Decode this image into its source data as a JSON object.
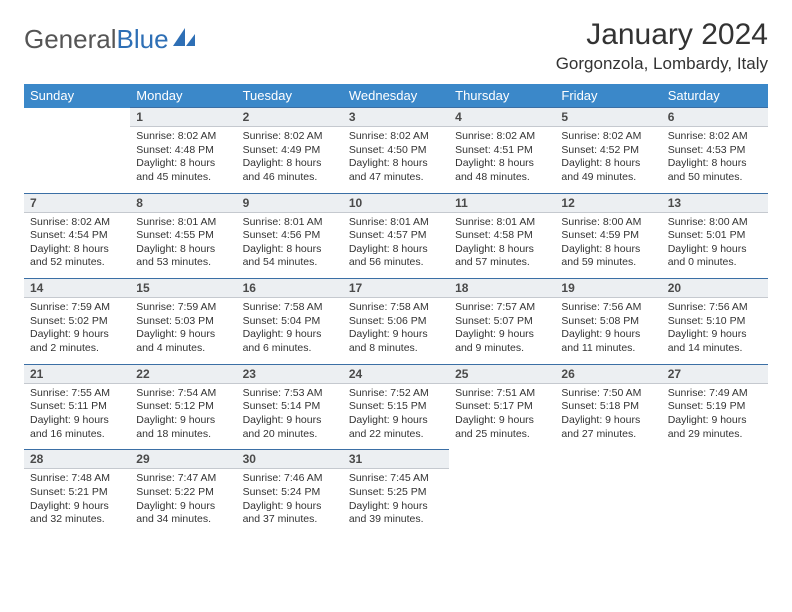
{
  "logo": {
    "part1": "General",
    "part2": "Blue"
  },
  "title": "January 2024",
  "location": "Gorgonzola, Lombardy, Italy",
  "header_bg": "#3b88c9",
  "daynum_bg": "#eceff2",
  "border_color": "#3b6fa5",
  "weekdays": [
    "Sunday",
    "Monday",
    "Tuesday",
    "Wednesday",
    "Thursday",
    "Friday",
    "Saturday"
  ],
  "weeks": [
    {
      "nums": [
        "",
        "1",
        "2",
        "3",
        "4",
        "5",
        "6"
      ],
      "cells": [
        "",
        "Sunrise: 8:02 AM\nSunset: 4:48 PM\nDaylight: 8 hours and 45 minutes.",
        "Sunrise: 8:02 AM\nSunset: 4:49 PM\nDaylight: 8 hours and 46 minutes.",
        "Sunrise: 8:02 AM\nSunset: 4:50 PM\nDaylight: 8 hours and 47 minutes.",
        "Sunrise: 8:02 AM\nSunset: 4:51 PM\nDaylight: 8 hours and 48 minutes.",
        "Sunrise: 8:02 AM\nSunset: 4:52 PM\nDaylight: 8 hours and 49 minutes.",
        "Sunrise: 8:02 AM\nSunset: 4:53 PM\nDaylight: 8 hours and 50 minutes."
      ]
    },
    {
      "nums": [
        "7",
        "8",
        "9",
        "10",
        "11",
        "12",
        "13"
      ],
      "cells": [
        "Sunrise: 8:02 AM\nSunset: 4:54 PM\nDaylight: 8 hours and 52 minutes.",
        "Sunrise: 8:01 AM\nSunset: 4:55 PM\nDaylight: 8 hours and 53 minutes.",
        "Sunrise: 8:01 AM\nSunset: 4:56 PM\nDaylight: 8 hours and 54 minutes.",
        "Sunrise: 8:01 AM\nSunset: 4:57 PM\nDaylight: 8 hours and 56 minutes.",
        "Sunrise: 8:01 AM\nSunset: 4:58 PM\nDaylight: 8 hours and 57 minutes.",
        "Sunrise: 8:00 AM\nSunset: 4:59 PM\nDaylight: 8 hours and 59 minutes.",
        "Sunrise: 8:00 AM\nSunset: 5:01 PM\nDaylight: 9 hours and 0 minutes."
      ]
    },
    {
      "nums": [
        "14",
        "15",
        "16",
        "17",
        "18",
        "19",
        "20"
      ],
      "cells": [
        "Sunrise: 7:59 AM\nSunset: 5:02 PM\nDaylight: 9 hours and 2 minutes.",
        "Sunrise: 7:59 AM\nSunset: 5:03 PM\nDaylight: 9 hours and 4 minutes.",
        "Sunrise: 7:58 AM\nSunset: 5:04 PM\nDaylight: 9 hours and 6 minutes.",
        "Sunrise: 7:58 AM\nSunset: 5:06 PM\nDaylight: 9 hours and 8 minutes.",
        "Sunrise: 7:57 AM\nSunset: 5:07 PM\nDaylight: 9 hours and 9 minutes.",
        "Sunrise: 7:56 AM\nSunset: 5:08 PM\nDaylight: 9 hours and 11 minutes.",
        "Sunrise: 7:56 AM\nSunset: 5:10 PM\nDaylight: 9 hours and 14 minutes."
      ]
    },
    {
      "nums": [
        "21",
        "22",
        "23",
        "24",
        "25",
        "26",
        "27"
      ],
      "cells": [
        "Sunrise: 7:55 AM\nSunset: 5:11 PM\nDaylight: 9 hours and 16 minutes.",
        "Sunrise: 7:54 AM\nSunset: 5:12 PM\nDaylight: 9 hours and 18 minutes.",
        "Sunrise: 7:53 AM\nSunset: 5:14 PM\nDaylight: 9 hours and 20 minutes.",
        "Sunrise: 7:52 AM\nSunset: 5:15 PM\nDaylight: 9 hours and 22 minutes.",
        "Sunrise: 7:51 AM\nSunset: 5:17 PM\nDaylight: 9 hours and 25 minutes.",
        "Sunrise: 7:50 AM\nSunset: 5:18 PM\nDaylight: 9 hours and 27 minutes.",
        "Sunrise: 7:49 AM\nSunset: 5:19 PM\nDaylight: 9 hours and 29 minutes."
      ]
    },
    {
      "nums": [
        "28",
        "29",
        "30",
        "31",
        "",
        "",
        ""
      ],
      "cells": [
        "Sunrise: 7:48 AM\nSunset: 5:21 PM\nDaylight: 9 hours and 32 minutes.",
        "Sunrise: 7:47 AM\nSunset: 5:22 PM\nDaylight: 9 hours and 34 minutes.",
        "Sunrise: 7:46 AM\nSunset: 5:24 PM\nDaylight: 9 hours and 37 minutes.",
        "Sunrise: 7:45 AM\nSunset: 5:25 PM\nDaylight: 9 hours and 39 minutes.",
        "",
        "",
        ""
      ]
    }
  ]
}
